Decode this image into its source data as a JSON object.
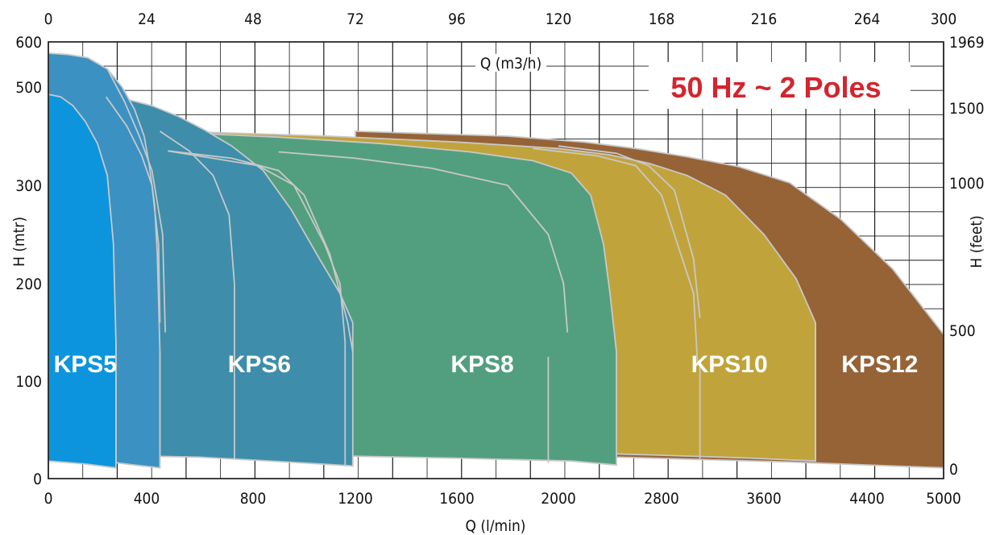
{
  "chart_data": {
    "type": "area",
    "title": "50 Hz ~ 2 Poles",
    "xlabel_bottom": "Q (l/min)",
    "xlabel_top": "Q (m3/h)",
    "ylabel_left": "H (mtr)",
    "ylabel_right": "H (feet)",
    "xlim": [
      0,
      5000
    ],
    "ylim": [
      0,
      600
    ],
    "grid": true,
    "x_ticks_bottom": [
      {
        "value": 0,
        "label": "0"
      },
      {
        "value": 400,
        "label": "400"
      },
      {
        "value": 800,
        "label": "800"
      },
      {
        "value": 1200,
        "label": "1200"
      },
      {
        "value": 1600,
        "label": "1600"
      },
      {
        "value": 2000,
        "label": "2000"
      },
      {
        "value": 2800,
        "label": "2800"
      },
      {
        "value": 3600,
        "label": "3600"
      },
      {
        "value": 4400,
        "label": "4400"
      },
      {
        "value": 5000,
        "label": "5000"
      }
    ],
    "x_ticks_top": [
      {
        "value": 0,
        "label": "0"
      },
      {
        "value": 400,
        "label": "24"
      },
      {
        "value": 800,
        "label": "48"
      },
      {
        "value": 1200,
        "label": "72"
      },
      {
        "value": 1600,
        "label": "96"
      },
      {
        "value": 2000,
        "label": "120"
      },
      {
        "value": 2800,
        "label": "168"
      },
      {
        "value": 3600,
        "label": "216"
      },
      {
        "value": 4400,
        "label": "264"
      },
      {
        "value": 5000,
        "label": "300"
      }
    ],
    "y_ticks_left": [
      {
        "value": 0,
        "label": "0"
      },
      {
        "value": 100,
        "label": "100"
      },
      {
        "value": 200,
        "label": "200"
      },
      {
        "value": 300,
        "label": "300"
      },
      {
        "value": 500,
        "label": "500"
      },
      {
        "value": 600,
        "label": "600"
      }
    ],
    "y_ticks_right": [
      {
        "value": 10,
        "label": "0"
      },
      {
        "value": 152,
        "label": "500"
      },
      {
        "value": 305,
        "label": "1000"
      },
      {
        "value": 457,
        "label": "1500"
      },
      {
        "value": 600,
        "label": "1969"
      }
    ],
    "series": [
      {
        "name": "KPS12",
        "color": "#966337",
        "upper": [
          [
            1200,
            410
          ],
          [
            1800,
            400
          ],
          [
            2200,
            388
          ],
          [
            2600,
            375
          ],
          [
            3000,
            358
          ],
          [
            3400,
            338
          ],
          [
            3800,
            305
          ],
          [
            4200,
            265
          ],
          [
            4600,
            215
          ],
          [
            5000,
            148
          ]
        ],
        "lower": [
          [
            5000,
            11
          ],
          [
            4400,
            14
          ],
          [
            3800,
            17
          ],
          [
            3000,
            20
          ],
          [
            2200,
            23
          ],
          [
            1200,
            25
          ]
        ],
        "label_pos": [
          4500,
          118
        ]
      },
      {
        "name": "KPS10",
        "color": "#c1a33b",
        "upper": [
          [
            500,
            410
          ],
          [
            1100,
            400
          ],
          [
            1600,
            388
          ],
          [
            2000,
            375
          ],
          [
            2400,
            362
          ],
          [
            2700,
            345
          ],
          [
            3000,
            320
          ],
          [
            3300,
            290
          ],
          [
            3600,
            250
          ],
          [
            3850,
            205
          ],
          [
            4000,
            160
          ]
        ],
        "lower": [
          [
            4000,
            18
          ],
          [
            3500,
            21
          ],
          [
            2800,
            24
          ],
          [
            2000,
            27
          ],
          [
            1200,
            29
          ],
          [
            500,
            30
          ]
        ],
        "label_pos": [
          3330,
          118
        ]
      },
      {
        "name": "KPS8",
        "color": "#529f7f",
        "upper": [
          [
            480,
            408
          ],
          [
            900,
            398
          ],
          [
            1300,
            385
          ],
          [
            1650,
            368
          ],
          [
            1900,
            350
          ],
          [
            2100,
            325
          ],
          [
            2250,
            290
          ],
          [
            2350,
            240
          ],
          [
            2400,
            190
          ],
          [
            2450,
            130
          ]
        ],
        "lower": [
          [
            2450,
            14
          ],
          [
            2100,
            18
          ],
          [
            1600,
            21
          ],
          [
            1000,
            24
          ],
          [
            480,
            26
          ]
        ],
        "label_pos": [
          1700,
          118
        ]
      },
      {
        "name": "KPS6",
        "color": "#3e8dab",
        "upper": [
          [
            235,
            480
          ],
          [
            320,
            475
          ],
          [
            420,
            462
          ],
          [
            520,
            440
          ],
          [
            620,
            412
          ],
          [
            720,
            380
          ],
          [
            840,
            330
          ],
          [
            950,
            275
          ],
          [
            1060,
            225
          ],
          [
            1140,
            190
          ],
          [
            1190,
            160
          ]
        ],
        "lower": [
          [
            1190,
            13
          ],
          [
            1000,
            16
          ],
          [
            800,
            19
          ],
          [
            600,
            22
          ],
          [
            235,
            24
          ]
        ],
        "label_pos": [
          825,
          118
        ]
      },
      {
        "name": "KPS5",
        "color": "#3b91c2",
        "upper": [
          [
            0,
            575
          ],
          [
            80,
            572
          ],
          [
            160,
            565
          ],
          [
            240,
            540
          ],
          [
            300,
            500
          ],
          [
            350,
            455
          ],
          [
            390,
            400
          ],
          [
            410,
            340
          ],
          [
            430,
            280
          ],
          [
            440,
            230
          ],
          [
            450,
            130
          ]
        ],
        "lower": [
          [
            450,
            11
          ],
          [
            350,
            14
          ],
          [
            250,
            17
          ],
          [
            0,
            19
          ]
        ],
        "label_pos": [
          0,
          0
        ]
      },
      {
        "name": "KPS5",
        "color": "#0c95dd",
        "upper": [
          [
            0,
            485
          ],
          [
            50,
            480
          ],
          [
            100,
            462
          ],
          [
            150,
            430
          ],
          [
            200,
            385
          ],
          [
            240,
            320
          ],
          [
            265,
            240
          ],
          [
            275,
            140
          ]
        ],
        "lower": [
          [
            275,
            11
          ],
          [
            150,
            15
          ],
          [
            0,
            18
          ]
        ],
        "label_pos": [
          150,
          118
        ]
      }
    ],
    "boundaries": [
      [
        [
          235,
          480
        ],
        [
          320,
          420
        ],
        [
          380,
          360
        ],
        [
          420,
          300
        ],
        [
          445,
          240
        ],
        [
          450,
          160
        ]
      ],
      [
        [
          240,
          540
        ],
        [
          310,
          470
        ],
        [
          370,
          400
        ],
        [
          420,
          330
        ],
        [
          460,
          250
        ],
        [
          470,
          150
        ]
      ],
      [
        [
          450,
          410
        ],
        [
          560,
          370
        ],
        [
          650,
          320
        ],
        [
          710,
          270
        ],
        [
          730,
          200
        ]
      ],
      [
        [
          480,
          370
        ],
        [
          720,
          355
        ],
        [
          900,
          330
        ],
        [
          1000,
          290
        ],
        [
          1100,
          230
        ],
        [
          1170,
          160
        ],
        [
          1190,
          130
        ]
      ],
      [
        [
          480,
          370
        ],
        [
          820,
          340
        ],
        [
          960,
          300
        ],
        [
          1080,
          240
        ],
        [
          1140,
          200
        ],
        [
          1160,
          140
        ]
      ],
      [
        [
          900,
          368
        ],
        [
          1200,
          355
        ],
        [
          1500,
          335
        ],
        [
          1800,
          300
        ],
        [
          1960,
          250
        ],
        [
          2040,
          200
        ],
        [
          2070,
          150
        ]
      ],
      [
        [
          1900,
          375
        ],
        [
          2300,
          360
        ],
        [
          2600,
          340
        ],
        [
          2800,
          290
        ],
        [
          2950,
          230
        ],
        [
          3050,
          190
        ],
        [
          3080,
          120
        ]
      ],
      [
        [
          2000,
          380
        ],
        [
          2450,
          365
        ],
        [
          2700,
          340
        ],
        [
          2900,
          295
        ],
        [
          3050,
          225
        ],
        [
          3100,
          165
        ]
      ],
      [
        [
          275,
          140
        ],
        [
          275,
          11
        ]
      ],
      [
        [
          450,
          130
        ],
        [
          450,
          11
        ]
      ],
      [
        [
          730,
          200
        ],
        [
          730,
          20
        ]
      ],
      [
        [
          1160,
          140
        ],
        [
          1160,
          14
        ]
      ],
      [
        [
          1960,
          125
        ],
        [
          1960,
          16
        ]
      ],
      [
        [
          3100,
          120
        ],
        [
          3100,
          20
        ]
      ],
      [
        [
          4000,
          160
        ],
        [
          4000,
          18
        ]
      ]
    ]
  }
}
